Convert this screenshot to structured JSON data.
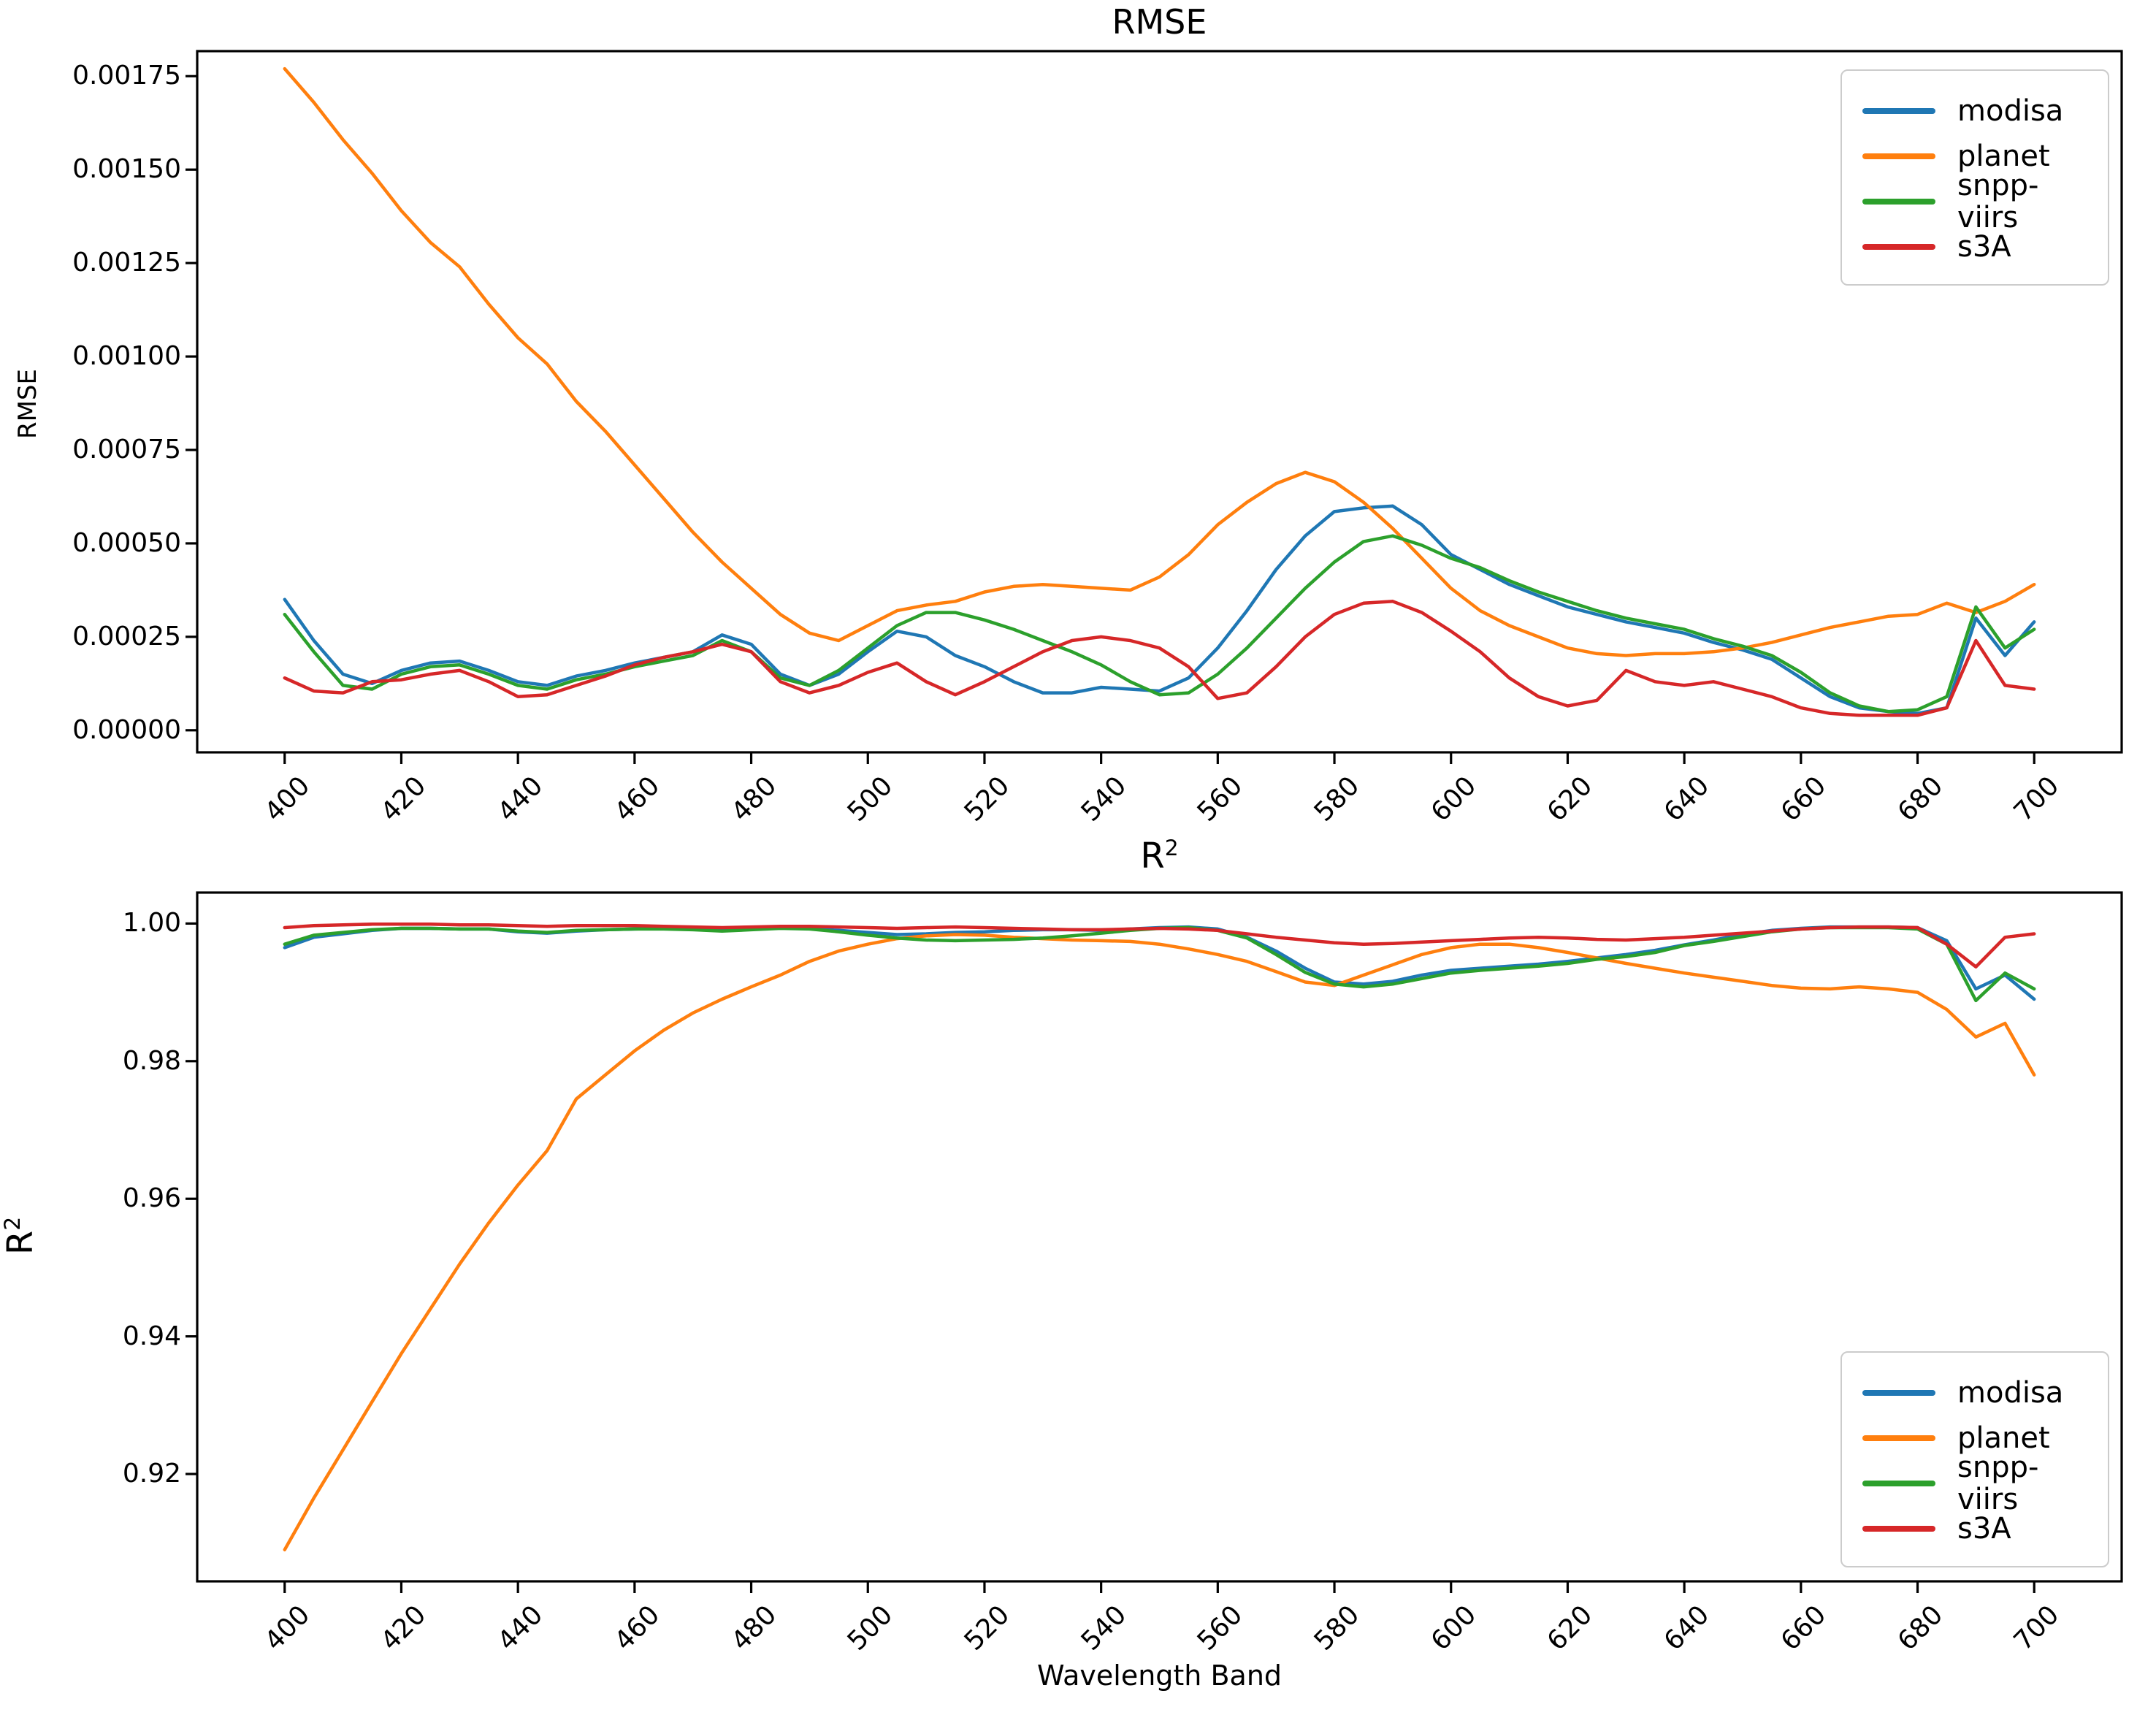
{
  "figure": {
    "background": "#ffffff"
  },
  "legend": {
    "items": [
      {
        "label": "modisa",
        "color": "#1f77b4"
      },
      {
        "label": "planet",
        "color": "#ff7f0e"
      },
      {
        "label": "snpp-viirs",
        "color": "#2ca02c"
      },
      {
        "label": "s3A",
        "color": "#d62728"
      }
    ]
  },
  "chart_data": [
    {
      "type": "line",
      "title": "RMSE",
      "ylabel": "RMSE",
      "xlabel": "",
      "legend_position": "upper-right",
      "grid": false,
      "xlim": [
        385,
        715
      ],
      "ylim": [
        -5.9e-05,
        0.001817
      ],
      "x_ticks": [
        "400",
        "420",
        "440",
        "460",
        "480",
        "500",
        "520",
        "540",
        "560",
        "580",
        "600",
        "620",
        "640",
        "660",
        "680",
        "700"
      ],
      "y_ticks": [
        "0.00000",
        "0.00025",
        "0.00050",
        "0.00075",
        "0.00100",
        "0.00125",
        "0.00150",
        "0.00175"
      ],
      "x": [
        400,
        405,
        410,
        415,
        420,
        425,
        430,
        435,
        440,
        445,
        450,
        455,
        460,
        465,
        470,
        475,
        480,
        485,
        490,
        495,
        500,
        505,
        510,
        515,
        520,
        525,
        530,
        535,
        540,
        545,
        550,
        555,
        560,
        565,
        570,
        575,
        580,
        585,
        590,
        595,
        600,
        605,
        610,
        615,
        620,
        625,
        630,
        635,
        640,
        645,
        650,
        655,
        660,
        665,
        670,
        675,
        680,
        685,
        690,
        695,
        700
      ],
      "series": [
        {
          "name": "modisa",
          "color": "#1f77b4",
          "values": [
            0.00035,
            0.00024,
            0.00015,
            0.000125,
            0.00016,
            0.00018,
            0.000185,
            0.00016,
            0.00013,
            0.00012,
            0.000145,
            0.00016,
            0.00018,
            0.000195,
            0.00021,
            0.000255,
            0.00023,
            0.00015,
            0.00012,
            0.00015,
            0.00021,
            0.000265,
            0.00025,
            0.0002,
            0.00017,
            0.00013,
            0.0001,
            0.0001,
            0.000115,
            0.00011,
            0.000105,
            0.00014,
            0.00022,
            0.00032,
            0.00043,
            0.00052,
            0.000585,
            0.000595,
            0.0006,
            0.00055,
            0.00047,
            0.00043,
            0.00039,
            0.00036,
            0.00033,
            0.00031,
            0.00029,
            0.000275,
            0.00026,
            0.000235,
            0.000215,
            0.00019,
            0.00014,
            9e-05,
            6e-05,
            5e-05,
            4.5e-05,
            6e-05,
            0.0003,
            0.0002,
            0.00029
          ]
        },
        {
          "name": "planet",
          "color": "#ff7f0e",
          "values": [
            0.00177,
            0.00168,
            0.00158,
            0.00149,
            0.00139,
            0.001305,
            0.00124,
            0.00114,
            0.00105,
            0.00098,
            0.00088,
            0.0008,
            0.00071,
            0.00062,
            0.00053,
            0.00045,
            0.00038,
            0.00031,
            0.00026,
            0.00024,
            0.00028,
            0.00032,
            0.000335,
            0.000345,
            0.00037,
            0.000385,
            0.00039,
            0.000385,
            0.00038,
            0.000375,
            0.00041,
            0.00047,
            0.00055,
            0.00061,
            0.00066,
            0.00069,
            0.000665,
            0.00061,
            0.00054,
            0.00046,
            0.00038,
            0.00032,
            0.00028,
            0.00025,
            0.00022,
            0.000205,
            0.0002,
            0.000205,
            0.000205,
            0.00021,
            0.00022,
            0.000235,
            0.000255,
            0.000275,
            0.00029,
            0.000305,
            0.00031,
            0.00034,
            0.000315,
            0.000345,
            0.00039
          ]
        },
        {
          "name": "snpp-viirs",
          "color": "#2ca02c",
          "values": [
            0.00031,
            0.00021,
            0.00012,
            0.00011,
            0.00015,
            0.00017,
            0.000175,
            0.00015,
            0.00012,
            0.00011,
            0.000135,
            0.00015,
            0.00017,
            0.000185,
            0.0002,
            0.00024,
            0.00021,
            0.00014,
            0.00012,
            0.00016,
            0.00022,
            0.00028,
            0.000315,
            0.000315,
            0.000295,
            0.00027,
            0.00024,
            0.00021,
            0.000175,
            0.00013,
            9.5e-05,
            0.0001,
            0.00015,
            0.00022,
            0.0003,
            0.00038,
            0.00045,
            0.000505,
            0.00052,
            0.000495,
            0.00046,
            0.000435,
            0.0004,
            0.00037,
            0.000345,
            0.00032,
            0.0003,
            0.000285,
            0.00027,
            0.000245,
            0.000225,
            0.0002,
            0.000155,
            0.0001,
            6.5e-05,
            5e-05,
            5.5e-05,
            9e-05,
            0.00033,
            0.00022,
            0.00027
          ]
        },
        {
          "name": "s3A",
          "color": "#d62728",
          "values": [
            0.00014,
            0.000105,
            0.0001,
            0.00013,
            0.000135,
            0.00015,
            0.00016,
            0.00013,
            9e-05,
            9.5e-05,
            0.00012,
            0.000145,
            0.000175,
            0.000195,
            0.00021,
            0.00023,
            0.00021,
            0.00013,
            0.0001,
            0.00012,
            0.000155,
            0.00018,
            0.00013,
            9.5e-05,
            0.00013,
            0.00017,
            0.00021,
            0.00024,
            0.00025,
            0.00024,
            0.00022,
            0.00017,
            8.5e-05,
            0.0001,
            0.00017,
            0.00025,
            0.00031,
            0.00034,
            0.000345,
            0.000315,
            0.000265,
            0.00021,
            0.00014,
            9e-05,
            6.5e-05,
            8e-05,
            0.00016,
            0.00013,
            0.00012,
            0.00013,
            0.00011,
            9e-05,
            6e-05,
            4.5e-05,
            4e-05,
            4e-05,
            4e-05,
            6e-05,
            0.00024,
            0.00012,
            0.00011
          ]
        }
      ]
    },
    {
      "type": "line",
      "title_base": "R",
      "title_sup": "2",
      "ylabel_base": "R",
      "ylabel_sup": "2",
      "xlabel": "Wavelength Band",
      "legend_position": "lower-right",
      "grid": false,
      "xlim": [
        385,
        715
      ],
      "ylim": [
        0.9044,
        1.0045
      ],
      "x_ticks": [
        "400",
        "420",
        "440",
        "460",
        "480",
        "500",
        "520",
        "540",
        "560",
        "580",
        "600",
        "620",
        "640",
        "660",
        "680",
        "700"
      ],
      "y_ticks": [
        "0.92",
        "0.94",
        "0.96",
        "0.98",
        "1.00"
      ],
      "x": [
        400,
        405,
        410,
        415,
        420,
        425,
        430,
        435,
        440,
        445,
        450,
        455,
        460,
        465,
        470,
        475,
        480,
        485,
        490,
        495,
        500,
        505,
        510,
        515,
        520,
        525,
        530,
        535,
        540,
        545,
        550,
        555,
        560,
        565,
        570,
        575,
        580,
        585,
        590,
        595,
        600,
        605,
        610,
        615,
        620,
        625,
        630,
        635,
        640,
        645,
        650,
        655,
        660,
        665,
        670,
        675,
        680,
        685,
        690,
        695,
        700
      ],
      "series": [
        {
          "name": "modisa",
          "color": "#1f77b4",
          "values": [
            0.9965,
            0.998,
            0.9985,
            0.999,
            0.9993,
            0.9993,
            0.9992,
            0.9992,
            0.9988,
            0.9986,
            0.9989,
            0.9991,
            0.9992,
            0.9993,
            0.9992,
            0.999,
            0.9992,
            0.9994,
            0.9993,
            0.999,
            0.9987,
            0.9984,
            0.9985,
            0.9987,
            0.9988,
            0.999,
            0.9991,
            0.9991,
            0.999,
            0.9992,
            0.9994,
            0.9995,
            0.9992,
            0.998,
            0.996,
            0.9935,
            0.9915,
            0.9912,
            0.9916,
            0.9925,
            0.9932,
            0.9935,
            0.9938,
            0.9941,
            0.9945,
            0.995,
            0.9955,
            0.9961,
            0.9969,
            0.9976,
            0.9984,
            0.999,
            0.9993,
            0.9995,
            0.9995,
            0.9995,
            0.9994,
            0.9975,
            0.9905,
            0.9925,
            0.989
          ]
        },
        {
          "name": "planet",
          "color": "#ff7f0e",
          "values": [
            0.909,
            0.9165,
            0.9235,
            0.9305,
            0.9375,
            0.944,
            0.9505,
            0.9565,
            0.962,
            0.967,
            0.9745,
            0.978,
            0.9815,
            0.9845,
            0.987,
            0.989,
            0.9908,
            0.9925,
            0.9945,
            0.996,
            0.997,
            0.9978,
            0.9982,
            0.9984,
            0.9983,
            0.998,
            0.9978,
            0.9976,
            0.9975,
            0.9974,
            0.997,
            0.9963,
            0.9955,
            0.9945,
            0.993,
            0.9915,
            0.991,
            0.9925,
            0.994,
            0.9955,
            0.9965,
            0.997,
            0.997,
            0.9965,
            0.9958,
            0.995,
            0.9942,
            0.9935,
            0.9928,
            0.9922,
            0.9916,
            0.991,
            0.9906,
            0.9905,
            0.9908,
            0.9905,
            0.99,
            0.9875,
            0.9835,
            0.9855,
            0.978
          ]
        },
        {
          "name": "snpp-viirs",
          "color": "#2ca02c",
          "values": [
            0.997,
            0.9983,
            0.9987,
            0.9991,
            0.9993,
            0.9993,
            0.9992,
            0.9992,
            0.9989,
            0.9987,
            0.999,
            0.9991,
            0.9992,
            0.9992,
            0.9991,
            0.9989,
            0.9991,
            0.9993,
            0.9992,
            0.9988,
            0.9983,
            0.9979,
            0.9976,
            0.9975,
            0.9976,
            0.9977,
            0.9979,
            0.9982,
            0.9986,
            0.999,
            0.9993,
            0.9994,
            0.999,
            0.9979,
            0.9955,
            0.9929,
            0.9912,
            0.9908,
            0.9912,
            0.992,
            0.9928,
            0.9932,
            0.9935,
            0.9938,
            0.9942,
            0.9948,
            0.9952,
            0.9958,
            0.9968,
            0.9974,
            0.9981,
            0.9988,
            0.9992,
            0.9994,
            0.9994,
            0.9994,
            0.9992,
            0.997,
            0.9888,
            0.9928,
            0.9905
          ]
        },
        {
          "name": "s3A",
          "color": "#d62728",
          "values": [
            0.9994,
            0.9997,
            0.9998,
            0.9999,
            0.9999,
            0.9999,
            0.9998,
            0.9998,
            0.9997,
            0.9996,
            0.9997,
            0.9997,
            0.9997,
            0.9996,
            0.9995,
            0.9994,
            0.9995,
            0.9996,
            0.9996,
            0.9995,
            0.9994,
            0.9993,
            0.9994,
            0.9995,
            0.9994,
            0.9993,
            0.9992,
            0.9991,
            0.9991,
            0.9992,
            0.9993,
            0.9992,
            0.999,
            0.9985,
            0.998,
            0.9976,
            0.9972,
            0.997,
            0.9971,
            0.9973,
            0.9975,
            0.9977,
            0.9979,
            0.998,
            0.9979,
            0.9977,
            0.9976,
            0.9978,
            0.998,
            0.9983,
            0.9986,
            0.9989,
            0.9992,
            0.9994,
            0.9995,
            0.9995,
            0.9994,
            0.997,
            0.9937,
            0.998,
            0.9985
          ]
        }
      ]
    }
  ]
}
